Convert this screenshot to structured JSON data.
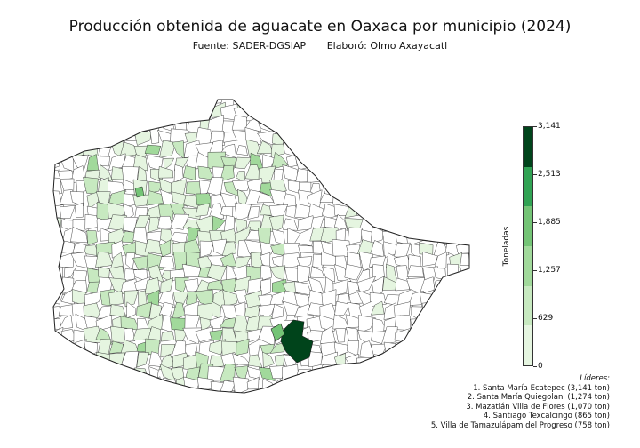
{
  "title": "Producción obtenida de aguacate en Oaxaca por municipio (2024)",
  "source": "Fuente: SADER-DGSIAP",
  "author": "Elaboró: Olmo Axayacatl",
  "colorbar": {
    "label": "Toneladas",
    "ticks": [
      "0",
      "629",
      "1,257",
      "1,885",
      "2,513",
      "3,141"
    ],
    "colors": [
      "#e5f5e0",
      "#c7e9c0",
      "#a1d99b",
      "#74c476",
      "#31a354",
      "#00441b"
    ]
  },
  "leaders": {
    "heading": "Líderes:",
    "items": [
      "1. Santa María Ecatepec (3,141 ton)",
      "2. Santa María Quiegolani (1,274 ton)",
      "3. Mazatlán Villa de Flores (1,070 ton)",
      "4. Santiago Texcalcingo (865 ton)",
      "5. Villa de Tamazulápam del Progreso (758 ton)"
    ]
  }
}
